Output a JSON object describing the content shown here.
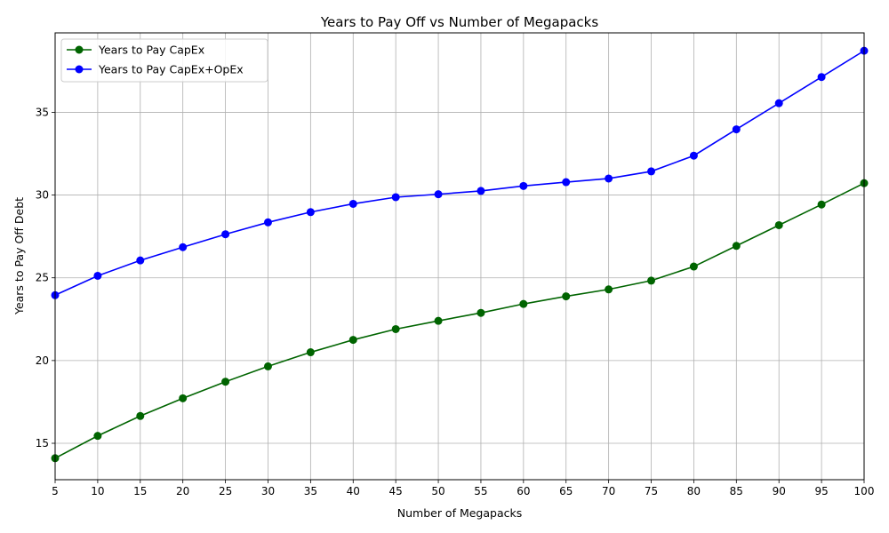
{
  "chart_data": {
    "type": "line",
    "title": "Years to Pay Off vs Number of Megapacks",
    "xlabel": "Number of Megapacks",
    "ylabel": "Years to Pay Off Debt",
    "x": [
      5,
      10,
      15,
      20,
      25,
      30,
      35,
      40,
      45,
      50,
      55,
      60,
      65,
      70,
      75,
      80,
      85,
      90,
      95,
      100
    ],
    "xlim": [
      5,
      100
    ],
    "ylim": [
      12.8,
      39.8
    ],
    "x_ticks": [
      5,
      10,
      15,
      20,
      25,
      30,
      35,
      40,
      45,
      50,
      55,
      60,
      65,
      70,
      75,
      80,
      85,
      90,
      95,
      100
    ],
    "y_ticks": [
      15,
      20,
      25,
      30,
      35
    ],
    "grid": true,
    "legend_position": "top-left",
    "series": [
      {
        "name": "Years to Pay CapEx",
        "color": "#006400",
        "marker": "circle",
        "values": [
          14.1,
          15.45,
          16.65,
          17.72,
          18.72,
          19.65,
          20.5,
          21.25,
          21.9,
          22.4,
          22.88,
          23.42,
          23.88,
          24.3,
          24.83,
          25.68,
          26.93,
          28.18,
          29.43,
          30.72
        ]
      },
      {
        "name": "Years to Pay CapEx+OpEx",
        "color": "#0000ff",
        "marker": "circle",
        "values": [
          23.95,
          25.12,
          26.05,
          26.85,
          27.63,
          28.35,
          28.97,
          29.47,
          29.87,
          30.05,
          30.25,
          30.55,
          30.78,
          31.0,
          31.43,
          32.38,
          33.97,
          35.55,
          37.13,
          38.72
        ]
      }
    ]
  }
}
